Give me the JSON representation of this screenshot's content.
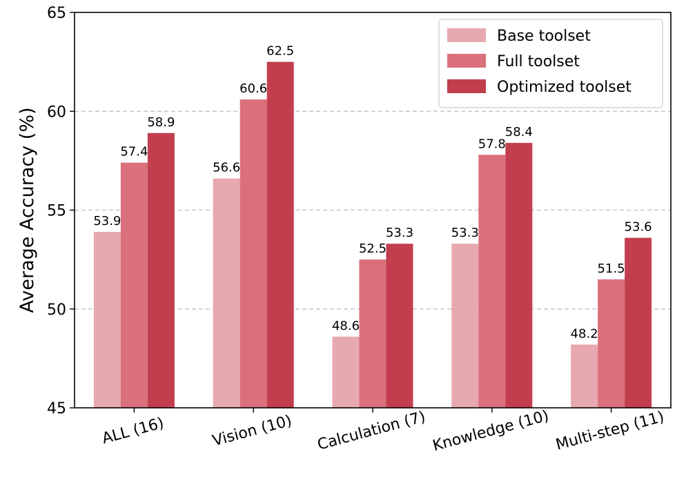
{
  "chart_data": {
    "type": "bar",
    "categories": [
      "ALL (16)",
      "Vision (10)",
      "Calculation (7)",
      "Knowledge (10)",
      "Multi-step (11)"
    ],
    "series": [
      {
        "name": "Base toolset",
        "color": "#e8a8b0",
        "values": [
          53.9,
          56.6,
          48.6,
          53.3,
          48.2
        ]
      },
      {
        "name": "Full toolset",
        "color": "#d9707b",
        "values": [
          57.4,
          60.6,
          52.5,
          57.8,
          51.5
        ]
      },
      {
        "name": "Optimized toolset",
        "color": "#c23e4e",
        "values": [
          58.9,
          62.5,
          53.3,
          58.4,
          53.6
        ]
      }
    ],
    "ylabel": "Average Accuracy (%)",
    "ylim": [
      45,
      65
    ],
    "yticks": [
      45,
      50,
      55,
      60,
      65
    ],
    "grid": "horizontal dashed",
    "legend": "top-right"
  }
}
